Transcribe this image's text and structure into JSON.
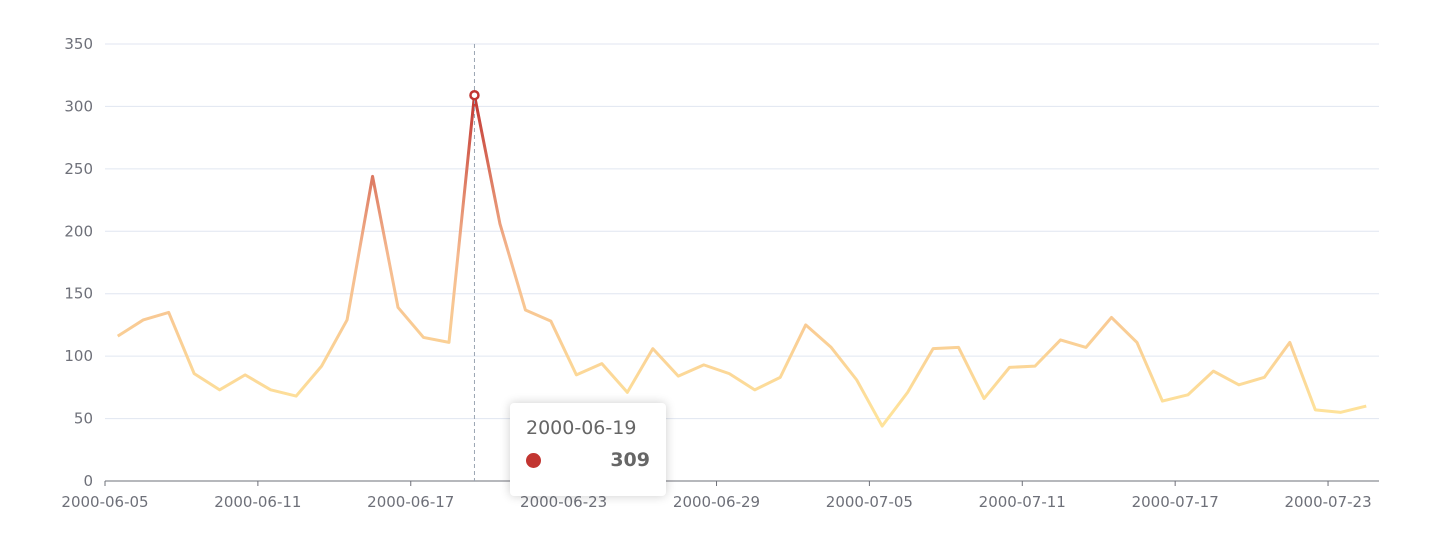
{
  "chart_data": {
    "type": "line",
    "categories": [
      "2000-06-05",
      null,
      null,
      null,
      null,
      null,
      "2000-06-11",
      null,
      null,
      null,
      null,
      null,
      "2000-06-17",
      null,
      null,
      null,
      null,
      null,
      "2000-06-23",
      null,
      null,
      null,
      null,
      null,
      "2000-06-29",
      null,
      null,
      null,
      null,
      null,
      "2000-07-05",
      null,
      null,
      null,
      null,
      null,
      "2000-07-11",
      null,
      null,
      null,
      null,
      null,
      "2000-07-17",
      null,
      null,
      null,
      null,
      null,
      "2000-07-23",
      null
    ],
    "values": [
      116,
      129,
      135,
      86,
      73,
      85,
      73,
      68,
      92,
      129,
      244,
      139,
      115,
      111,
      309,
      206,
      137,
      128,
      85,
      94,
      71,
      106,
      84,
      93,
      86,
      73,
      83,
      125,
      107,
      81,
      44,
      71,
      106,
      107,
      66,
      91,
      92,
      113,
      107,
      131,
      111,
      64,
      69,
      88,
      77,
      83,
      111,
      57,
      55,
      60
    ],
    "color_stops": [
      "#fee39b",
      "#f5b98f",
      "#c23531"
    ],
    "ylim": [
      0,
      350
    ],
    "yticks": [
      0,
      50,
      100,
      150,
      200,
      250,
      300,
      350
    ],
    "grid": true,
    "tooltip": {
      "category": "2000-06-19"
    }
  }
}
